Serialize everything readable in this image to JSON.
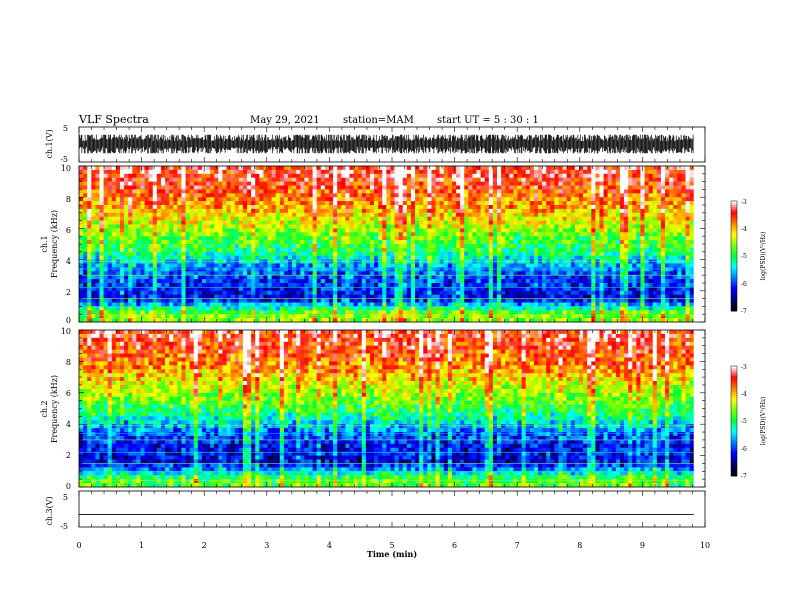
{
  "header": {
    "title": "VLF Spectra",
    "date": "May 29, 2021",
    "station": "station=MAM",
    "start": "start  UT =   5 : 30 : 1"
  },
  "chart_data": [
    {
      "type": "line",
      "name": "ch1-waveform",
      "ylabel": "ch.1(V)",
      "ylim": [
        -5,
        5
      ],
      "yticks": [
        "5",
        "-5"
      ],
      "xlim": [
        0,
        10
      ],
      "trace_color": "#000000",
      "amplitude_range": [
        -2.5,
        2.8
      ]
    },
    {
      "type": "heatmap",
      "name": "ch1-spectrogram",
      "ylabel_lines": [
        "ch.1",
        "Frequency  (kHz)"
      ],
      "ylim": [
        0,
        10
      ],
      "yticks": [
        "0",
        "2",
        "4",
        "6",
        "8",
        "10"
      ],
      "xlim": [
        0,
        10
      ],
      "data_end_x": 9.82,
      "colorbar": {
        "label": "log(PSD)(V²/Hz)",
        "range": [
          -7,
          -3
        ],
        "ticks": [
          "-3",
          "-4",
          "-5",
          "-6",
          "-7"
        ],
        "colors": [
          "#000000",
          "#00007f",
          "#0000ff",
          "#0080ff",
          "#00ffff",
          "#00ff40",
          "#80ff00",
          "#ffff00",
          "#ff8000",
          "#ff0000",
          "#ffffff"
        ]
      },
      "intensity_profile": [
        {
          "freq_khz": 0.5,
          "log_psd": -4.6
        },
        {
          "freq_khz": 1.5,
          "log_psd": -6.3
        },
        {
          "freq_khz": 2.5,
          "log_psd": -6.1
        },
        {
          "freq_khz": 3.5,
          "log_psd": -5.8
        },
        {
          "freq_khz": 4.5,
          "log_psd": -5.1
        },
        {
          "freq_khz": 5.5,
          "log_psd": -4.7
        },
        {
          "freq_khz": 6.5,
          "log_psd": -4.3
        },
        {
          "freq_khz": 7.5,
          "log_psd": -3.9
        },
        {
          "freq_khz": 8.5,
          "log_psd": -3.6
        },
        {
          "freq_khz": 9.5,
          "log_psd": -3.4
        }
      ]
    },
    {
      "type": "heatmap",
      "name": "ch2-spectrogram",
      "ylabel_lines": [
        "ch.2",
        "Frequency  (kHz)"
      ],
      "ylim": [
        0,
        10
      ],
      "yticks": [
        "0",
        "2",
        "4",
        "6",
        "8",
        "10"
      ],
      "xlim": [
        0,
        10
      ],
      "data_end_x": 9.82,
      "colorbar": {
        "label": "log(PSD)(V²/Hz)",
        "range": [
          -7,
          -3
        ],
        "ticks": [
          "-3",
          "-4",
          "-5",
          "-6",
          "-7"
        ],
        "colors": [
          "#000000",
          "#00007f",
          "#0000ff",
          "#0080ff",
          "#00ffff",
          "#00ff40",
          "#80ff00",
          "#ffff00",
          "#ff8000",
          "#ff0000",
          "#ffffff"
        ]
      },
      "intensity_profile": [
        {
          "freq_khz": 0.5,
          "log_psd": -4.8
        },
        {
          "freq_khz": 1.5,
          "log_psd": -6.3
        },
        {
          "freq_khz": 2.5,
          "log_psd": -6.2
        },
        {
          "freq_khz": 3.5,
          "log_psd": -5.9
        },
        {
          "freq_khz": 4.5,
          "log_psd": -5.2
        },
        {
          "freq_khz": 5.5,
          "log_psd": -4.7
        },
        {
          "freq_khz": 6.5,
          "log_psd": -4.3
        },
        {
          "freq_khz": 7.5,
          "log_psd": -3.9
        },
        {
          "freq_khz": 8.5,
          "log_psd": -3.6
        },
        {
          "freq_khz": 9.5,
          "log_psd": -3.4
        }
      ]
    },
    {
      "type": "line",
      "name": "ch3-waveform",
      "ylabel": "ch.3(V)",
      "ylim": [
        -5,
        5
      ],
      "yticks": [
        "5",
        "-5"
      ],
      "xlim": [
        0,
        10
      ],
      "xticks": [
        "0",
        "1",
        "2",
        "3",
        "4",
        "5",
        "6",
        "7",
        "8",
        "9",
        "10"
      ],
      "xlabel": "Time  (min)",
      "trace_color": "#000000",
      "constant_value": -1.5
    }
  ]
}
